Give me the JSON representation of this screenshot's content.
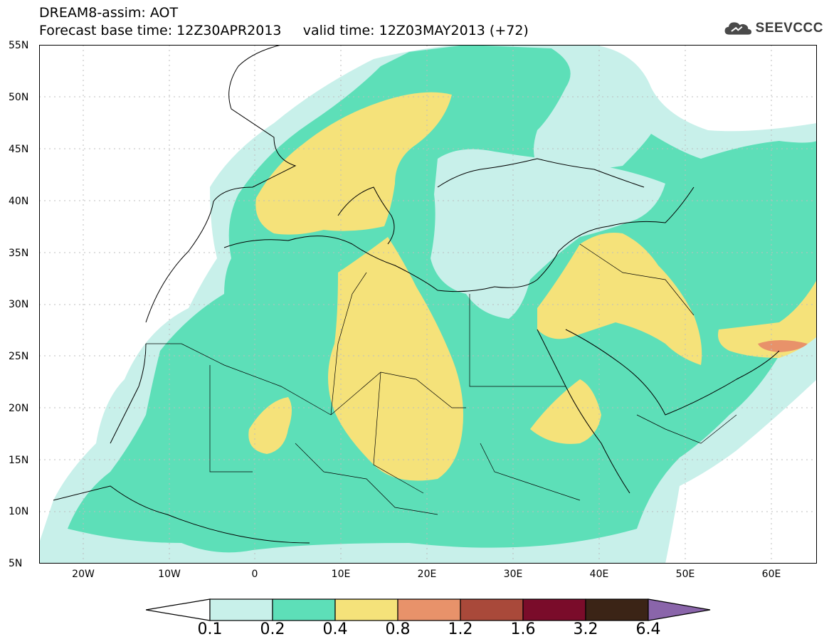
{
  "header": {
    "line1": "DREAM8-assim: AOT",
    "line2": "Forecast base time: 12Z30APR2013     valid time: 12Z03MAY2013 (+72)",
    "logo_text": "SEEVCCC"
  },
  "axes": {
    "lat_labels": [
      "55N",
      "50N",
      "45N",
      "40N",
      "35N",
      "30N",
      "25N",
      "20N",
      "15N",
      "10N",
      "5N"
    ],
    "lon_labels": [
      "20W",
      "10W",
      "0",
      "10E",
      "20E",
      "30E",
      "40E",
      "50E",
      "60E"
    ]
  },
  "colorbar": {
    "labels": [
      "0.1",
      "0.2",
      "0.4",
      "0.8",
      "1.2",
      "1.6",
      "3.2",
      "6.4"
    ],
    "colors": [
      "#ffffff",
      "#c8f0ea",
      "#5ddfb8",
      "#f5e27a",
      "#e8926a",
      "#a9493a",
      "#7a0c2a",
      "#3b2416",
      "#8a65aa"
    ]
  },
  "map": {
    "colors": {
      "land_bg": "#ffffff",
      "aot_01_02": "#c8f0ea",
      "aot_02_04": "#5ddfb8",
      "aot_04_08": "#f5e27a",
      "aot_08_12": "#e8926a",
      "aot_12_16": "#a9493a"
    }
  }
}
